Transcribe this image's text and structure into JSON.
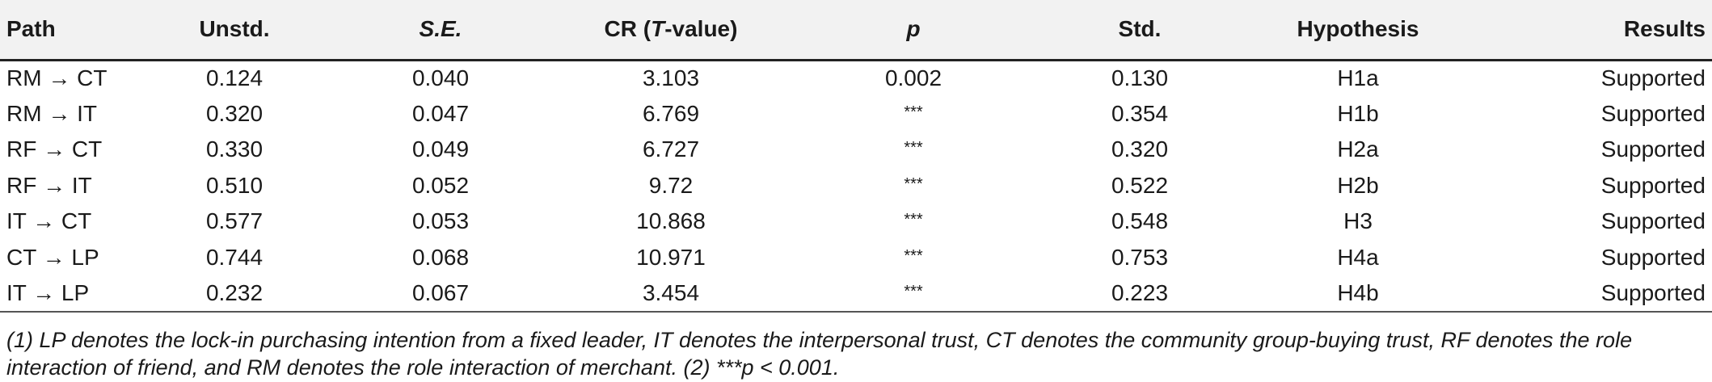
{
  "table": {
    "headers": {
      "path": "Path",
      "unstd": "Unstd.",
      "se": "S.E.",
      "cr_prefix": "CR (",
      "cr_t": "T",
      "cr_suffix": "-value)",
      "p": "p",
      "std": "Std.",
      "hypothesis": "Hypothesis",
      "results": "Results"
    },
    "rows": [
      {
        "path": "RM → CT",
        "unstd": "0.124",
        "se": "0.040",
        "cr": "3.103",
        "p": "0.002",
        "std": "0.130",
        "hypothesis": "H1a",
        "result": "Supported"
      },
      {
        "path": "RM → IT",
        "unstd": "0.320",
        "se": "0.047",
        "cr": "6.769",
        "p": "***",
        "std": "0.354",
        "hypothesis": "H1b",
        "result": "Supported"
      },
      {
        "path": "RF → CT",
        "unstd": "0.330",
        "se": "0.049",
        "cr": "6.727",
        "p": "***",
        "std": "0.320",
        "hypothesis": "H2a",
        "result": "Supported"
      },
      {
        "path": "RF → IT",
        "unstd": "0.510",
        "se": "0.052",
        "cr": "9.72",
        "p": "***",
        "std": "0.522",
        "hypothesis": "H2b",
        "result": "Supported"
      },
      {
        "path": "IT → CT",
        "unstd": "0.577",
        "se": "0.053",
        "cr": "10.868",
        "p": "***",
        "std": "0.548",
        "hypothesis": "H3",
        "result": "Supported"
      },
      {
        "path": "CT → LP",
        "unstd": "0.744",
        "se": "0.068",
        "cr": "10.971",
        "p": "***",
        "std": "0.753",
        "hypothesis": "H4a",
        "result": "Supported"
      },
      {
        "path": "IT → LP",
        "unstd": "0.232",
        "se": "0.067",
        "cr": "3.454",
        "p": "***",
        "std": "0.223",
        "hypothesis": "H4b",
        "result": "Supported"
      }
    ]
  },
  "footnote": {
    "line1": "(1) LP denotes the lock-in purchasing intention from a fixed leader, IT denotes the interpersonal trust, CT denotes the community group-buying trust, RF denotes the role",
    "line2": "interaction of friend, and RM denotes the role interaction of merchant. (2) ***p < 0.001."
  }
}
